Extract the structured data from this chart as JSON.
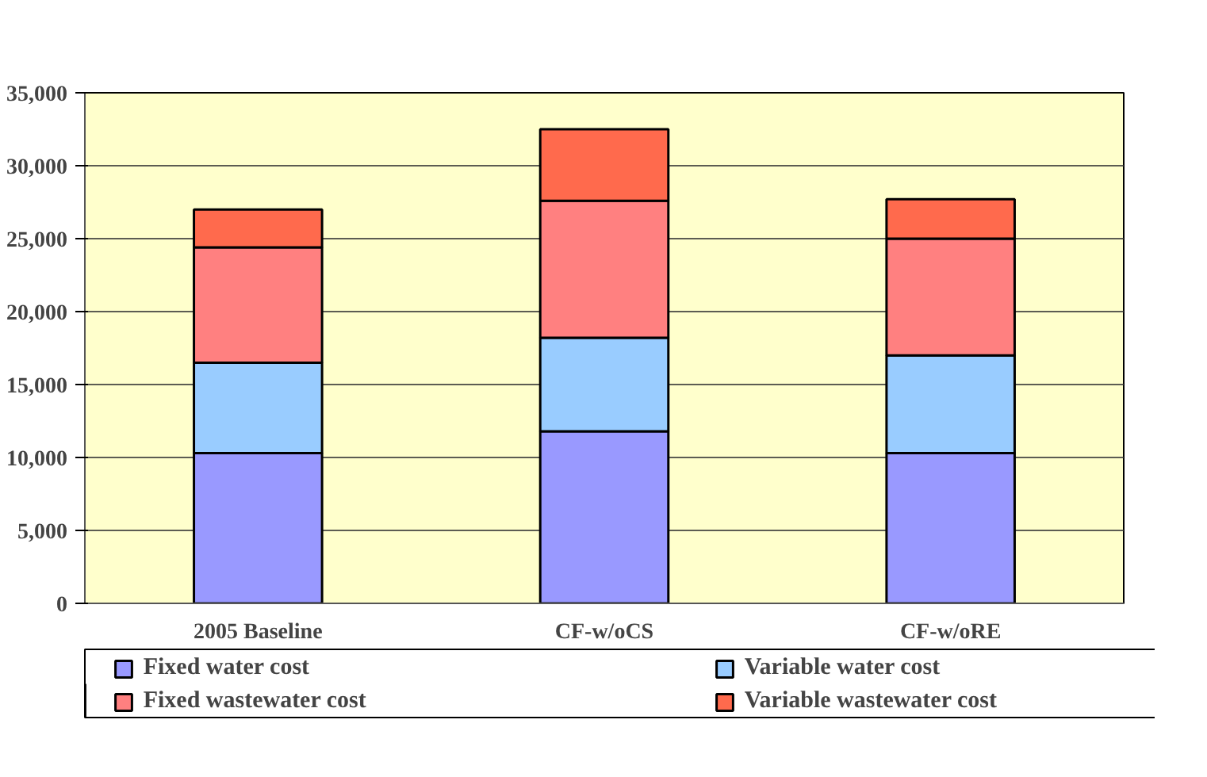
{
  "chart_data": {
    "type": "bar",
    "stacked": true,
    "categories": [
      "2005 Baseline",
      "CF-w/oCS",
      "CF-w/oRE"
    ],
    "series": [
      {
        "name": "Fixed water cost",
        "color": "#9999ff",
        "values": [
          10300,
          11800,
          10300
        ]
      },
      {
        "name": "Variable water cost",
        "color": "#99ccff",
        "values": [
          6200,
          6400,
          6700
        ]
      },
      {
        "name": "Fixed wastewater cost",
        "color": "#ff8080",
        "values": [
          7900,
          9400,
          8000
        ]
      },
      {
        "name": "Variable wastewater cost",
        "color": "#ff6a4d",
        "values": [
          2600,
          4900,
          2700
        ]
      }
    ],
    "ylim": [
      0,
      35000
    ],
    "yticks": [
      {
        "value": 0,
        "label": "0"
      },
      {
        "value": 5000,
        "label": "5,000"
      },
      {
        "value": 10000,
        "label": "10,000"
      },
      {
        "value": 15000,
        "label": "15,000"
      },
      {
        "value": 20000,
        "label": "20,000"
      },
      {
        "value": 25000,
        "label": "25,000"
      },
      {
        "value": 30000,
        "label": "30,000"
      },
      {
        "value": 35000,
        "label": "35,000"
      }
    ],
    "grid": "y",
    "legend": "bottom"
  }
}
